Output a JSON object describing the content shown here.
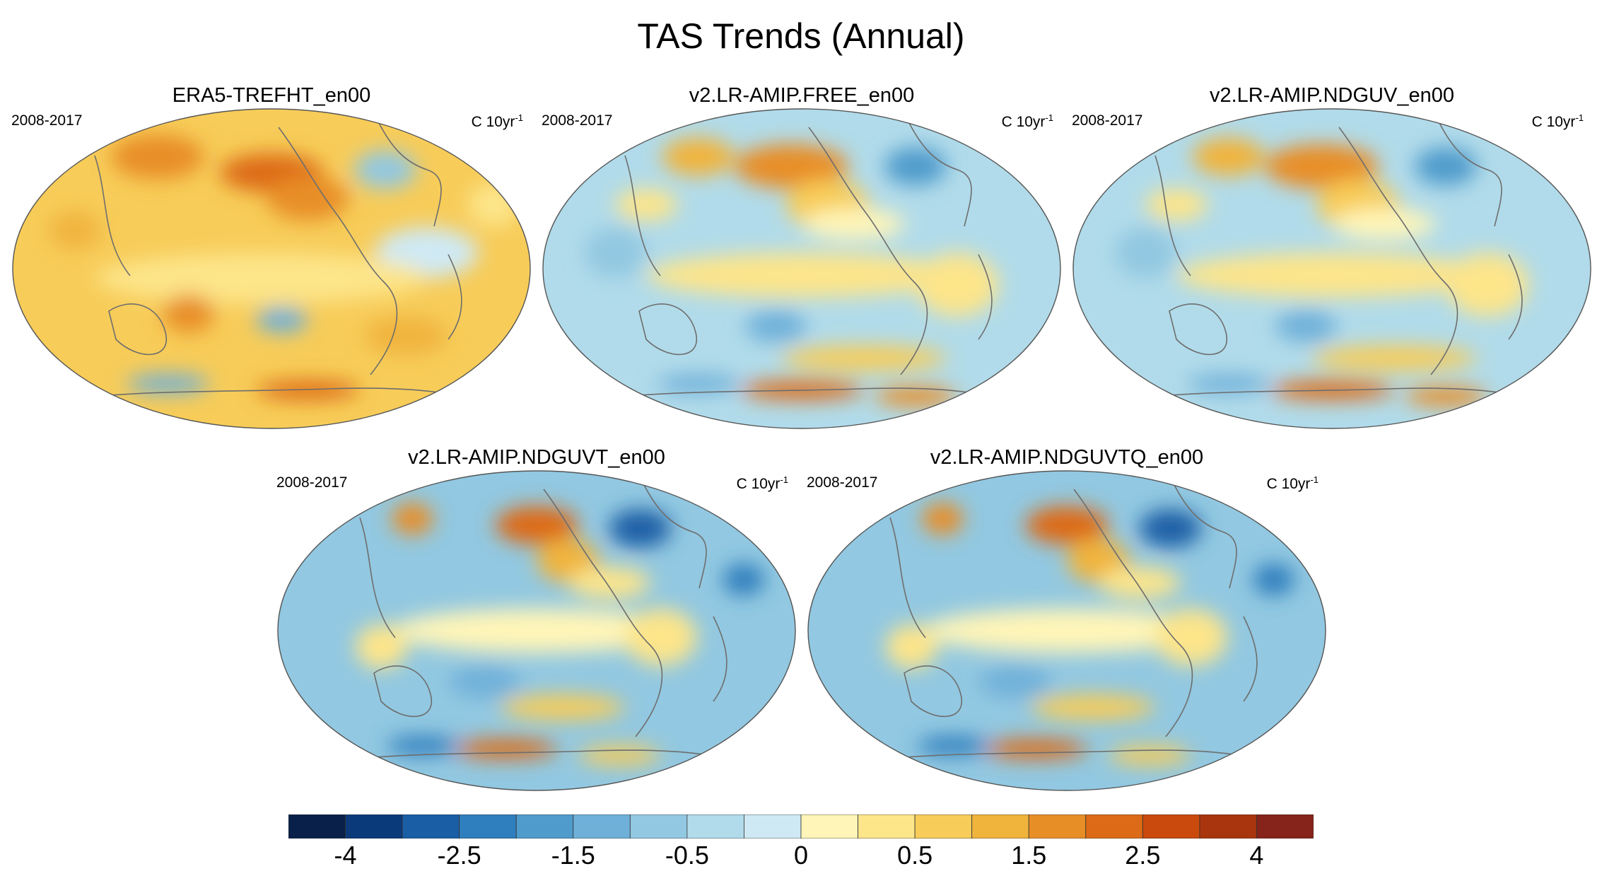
{
  "figure": {
    "title": "TAS Trends (Annual)"
  },
  "panels": [
    {
      "title": "ERA5-TREFHT_en00",
      "period": "2008-2017",
      "units_base": "C 10yr",
      "units_exp": "-1",
      "scheme": "warm"
    },
    {
      "title": "v2.LR-AMIP.FREE_en00",
      "period": "2008-2017",
      "units_base": "C 10yr",
      "units_exp": "-1",
      "scheme": "mixed"
    },
    {
      "title": "v2.LR-AMIP.NDGUV_en00",
      "period": "2008-2017",
      "units_base": "C 10yr",
      "units_exp": "-1",
      "scheme": "mixed"
    },
    {
      "title": "v2.LR-AMIP.NDGUVT_en00",
      "period": "2008-2017",
      "units_base": "C 10yr",
      "units_exp": "-1",
      "scheme": "cool"
    },
    {
      "title": "v2.LR-AMIP.NDGUVTQ_en00",
      "period": "2008-2017",
      "units_base": "C 10yr",
      "units_exp": "-1",
      "scheme": "cool"
    }
  ],
  "colorbar": {
    "colors": [
      "#08204a",
      "#0b3a7a",
      "#1a5ea6",
      "#2f7ebd",
      "#4f9bcc",
      "#6fb0d9",
      "#92c8e1",
      "#b1dbea",
      "#cfe9f4",
      "#fff5b8",
      "#fde58a",
      "#f7cc59",
      "#f0b43c",
      "#e88e27",
      "#dd6a17",
      "#c94a0c",
      "#a8350d",
      "#86231a"
    ],
    "labels": [
      "-4",
      "-2.5",
      "-1.5",
      "-0.5",
      "0",
      "0.5",
      "1.5",
      "2.5",
      "4"
    ],
    "label_boundaries": [
      1,
      3,
      5,
      7,
      9,
      11,
      13,
      15,
      17
    ]
  }
}
